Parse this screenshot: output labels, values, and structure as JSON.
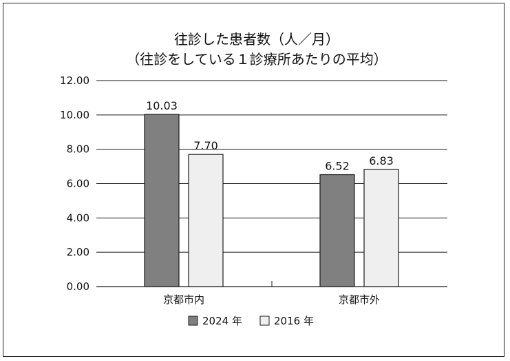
{
  "chart_data": {
    "type": "bar",
    "title_line1": "往診した患者数（人／月）",
    "title_line2": "（往診をしている１診療所あたりの平均）",
    "categories": [
      "京都市内",
      "京都市外"
    ],
    "series": [
      {
        "name": "2024 年",
        "values": [
          10.03,
          6.52
        ],
        "color": "#808080"
      },
      {
        "name": "2016 年",
        "values": [
          7.7,
          6.83
        ],
        "color": "#efefef"
      }
    ],
    "data_labels": [
      [
        "10.03",
        "6.52"
      ],
      [
        "7.70",
        "6.83"
      ]
    ],
    "ylim": [
      0,
      12
    ],
    "yticks": [
      "0.00",
      "2.00",
      "4.00",
      "6.00",
      "8.00",
      "10.00",
      "12.00"
    ],
    "grid": true,
    "legend_position": "bottom"
  }
}
